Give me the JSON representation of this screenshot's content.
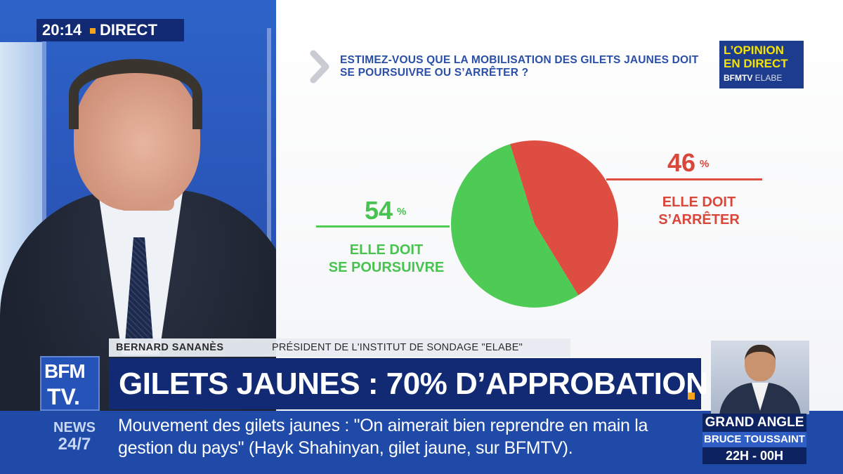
{
  "clock": {
    "time": "20:14",
    "live_label": "DIRECT"
  },
  "question": "ESTIMEZ-VOUS QUE LA MOBILISATION DES GILETS JAUNES DOIT SE POURSUIVRE OU S’ARRÊTER ?",
  "logo": {
    "line1": "L’OPINION",
    "line2": "EN DIRECT",
    "brand": "BFMTV",
    "partner": "ELABE"
  },
  "chart_data": {
    "type": "pie",
    "slices": [
      {
        "label": "ELLE DOIT SE POURSUIVRE",
        "value": 54,
        "unit": "%",
        "color": "#4ecb55"
      },
      {
        "label": "ELLE DOIT S’ARRÊTER",
        "value": 46,
        "unit": "%",
        "color": "#de4d42"
      }
    ]
  },
  "labels": {
    "green_value": "54",
    "green_unit": "%",
    "green_line1": "ELLE DOIT",
    "green_line2": "SE POURSUIVRE",
    "red_value": "46",
    "red_unit": "%",
    "red_line1": "ELLE DOIT",
    "red_line2": "S’ARRÊTER"
  },
  "nameplate": {
    "name": "BERNARD SANANÈS",
    "title": "PRÉSIDENT DE L'INSTITUT DE SONDAGE \"ELABE\""
  },
  "channel_logo": {
    "line1": "BFM",
    "line2": "TV."
  },
  "headline": "GILETS JAUNES : 70% D’APPROBATION",
  "ticker": {
    "label_line1": "NEWS",
    "label_line2": "24/7",
    "text": "Mouvement des gilets jaunes : \"On aimerait bien reprendre en main la gestion du pays\" (Hayk Shahinyan, gilet jaune, sur BFMTV)."
  },
  "program": {
    "title": "GRAND ANGLE",
    "host": "BRUCE TOUSSAINT",
    "time": "22H - 00H"
  },
  "colors": {
    "accent_orange": "#f3a41a",
    "navy": "#122a74",
    "green": "#4ecb55",
    "red": "#de4d42",
    "question_blue": "#2a4fa8"
  }
}
